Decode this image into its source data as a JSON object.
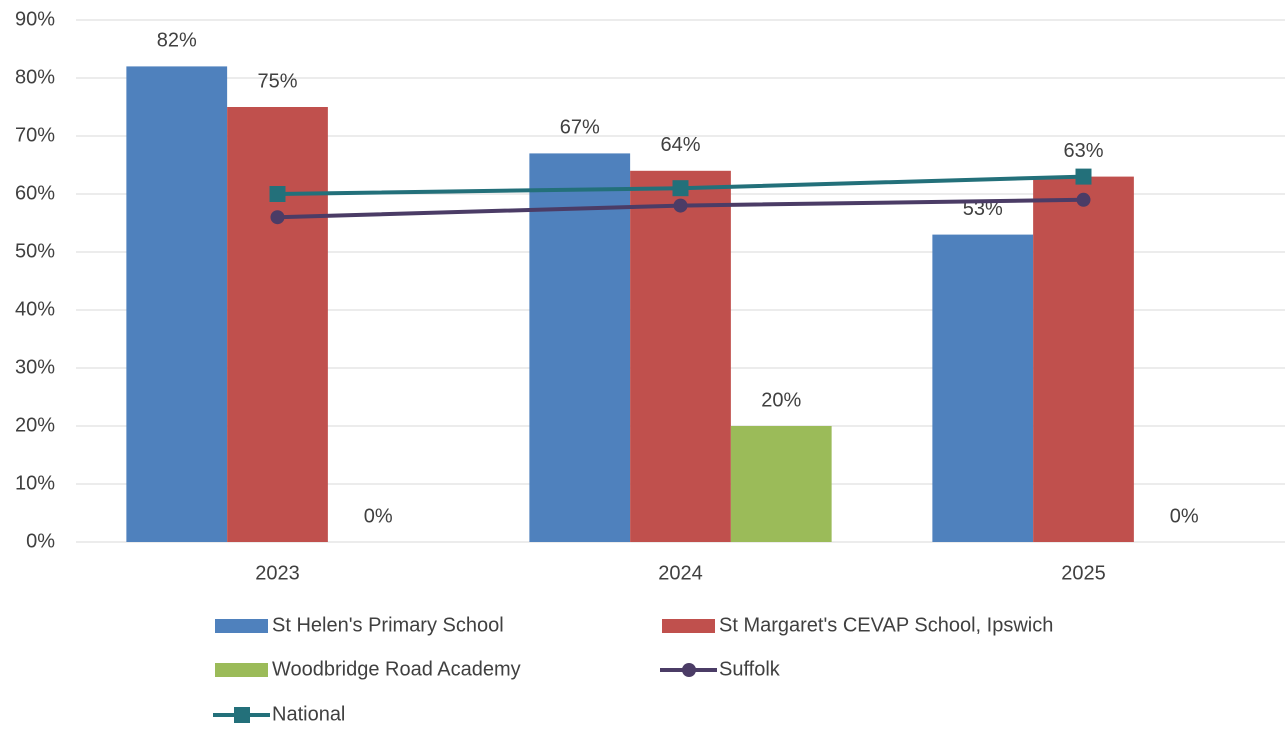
{
  "chart_data": {
    "type": "bar",
    "categories": [
      "2023",
      "2024",
      "2025"
    ],
    "series": [
      {
        "name": "St Helen's Primary School",
        "color": "#4f81bd",
        "values": [
          82,
          67,
          53
        ],
        "value_labels": [
          "82%",
          "67%",
          "53%"
        ]
      },
      {
        "name": "St Margaret's CEVAP School, Ipswich",
        "color": "#c0504d",
        "values": [
          75,
          64,
          63
        ],
        "value_labels": [
          "75%",
          "64%",
          "63%"
        ]
      },
      {
        "name": "Woodbridge Road Academy",
        "color": "#9bbb59",
        "values": [
          0,
          20,
          0
        ],
        "value_labels": [
          "0%",
          "20%",
          "0%"
        ]
      },
      {
        "name": "Suffolk",
        "type": "line",
        "marker": "circle",
        "color": "#4b3c66",
        "values": [
          56,
          58,
          59
        ]
      },
      {
        "name": "National",
        "type": "line",
        "marker": "square",
        "color": "#23707a",
        "values": [
          60,
          61,
          63
        ]
      }
    ],
    "ylim": [
      0,
      90
    ],
    "yticks": [
      {
        "value": 0,
        "label": "0%"
      },
      {
        "value": 10,
        "label": "10%"
      },
      {
        "value": 20,
        "label": "20%"
      },
      {
        "value": 30,
        "label": "30%"
      },
      {
        "value": 40,
        "label": "40%"
      },
      {
        "value": 50,
        "label": "50%"
      },
      {
        "value": 60,
        "label": "60%"
      },
      {
        "value": 70,
        "label": "70%"
      },
      {
        "value": 80,
        "label": "80%"
      },
      {
        "value": 90,
        "label": "90%"
      }
    ],
    "grid": true,
    "legend": "bottom"
  }
}
